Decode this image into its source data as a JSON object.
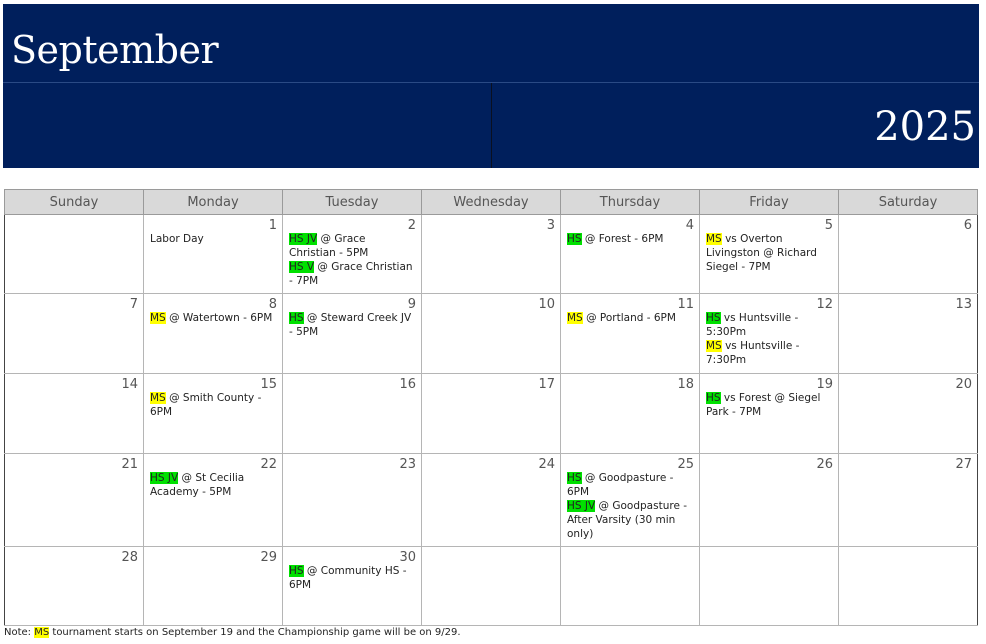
{
  "header": {
    "month": "September",
    "year": "2025"
  },
  "weekdays": [
    "Sunday",
    "Monday",
    "Tuesday",
    "Wednesday",
    "Thursday",
    "Friday",
    "Saturday"
  ],
  "colors": {
    "header_bg": "#001f5c",
    "hs_tag": "#00e000",
    "ms_tag": "#ffff00"
  },
  "weeks": [
    [
      {
        "day": "",
        "events": []
      },
      {
        "day": "1",
        "events": [
          {
            "tag": "",
            "text": "Labor Day"
          }
        ]
      },
      {
        "day": "2",
        "events": [
          {
            "tag": "HS JV",
            "type": "hs",
            "text": " @ Grace Christian - 5PM"
          },
          {
            "tag": "HS V",
            "type": "hs",
            "text": " @ Grace Christian - 7PM"
          }
        ]
      },
      {
        "day": "3",
        "events": []
      },
      {
        "day": "4",
        "events": [
          {
            "tag": "HS",
            "type": "hs",
            "text": " @ Forest - 6PM"
          }
        ]
      },
      {
        "day": "5",
        "events": [
          {
            "tag": "MS",
            "type": "ms",
            "text": " vs  Overton Livingston @ Richard Siegel - 7PM"
          }
        ]
      },
      {
        "day": "6",
        "events": []
      }
    ],
    [
      {
        "day": "7",
        "events": []
      },
      {
        "day": "8",
        "events": [
          {
            "tag": "MS",
            "type": "ms",
            "text": " @ Watertown - 6PM"
          }
        ]
      },
      {
        "day": "9",
        "events": [
          {
            "tag": "HS",
            "type": "hs",
            "text": " @ Steward Creek JV - 5PM"
          }
        ]
      },
      {
        "day": "10",
        "events": []
      },
      {
        "day": "11",
        "events": [
          {
            "tag": "MS",
            "type": "ms",
            "text": " @ Portland - 6PM"
          }
        ]
      },
      {
        "day": "12",
        "events": [
          {
            "tag": "HS",
            "type": "hs",
            "text": " vs Huntsville - 5:30Pm"
          },
          {
            "tag": "MS",
            "type": "ms",
            "text": " vs Huntsville - 7:30Pm"
          }
        ]
      },
      {
        "day": "13",
        "events": []
      }
    ],
    [
      {
        "day": "14",
        "events": []
      },
      {
        "day": "15",
        "events": [
          {
            "tag": "MS",
            "type": "ms",
            "text": " @ Smith County - 6PM"
          }
        ]
      },
      {
        "day": "16",
        "events": []
      },
      {
        "day": "17",
        "events": []
      },
      {
        "day": "18",
        "events": []
      },
      {
        "day": "19",
        "events": [
          {
            "tag": "HS",
            "type": "hs",
            "text": " vs Forest @ Siegel Park - 7PM"
          }
        ]
      },
      {
        "day": "20",
        "events": []
      }
    ],
    [
      {
        "day": "21",
        "events": []
      },
      {
        "day": "22",
        "events": [
          {
            "tag": "HS JV",
            "type": "hs",
            "text": " @ St Cecilia Academy - 5PM"
          }
        ]
      },
      {
        "day": "23",
        "events": []
      },
      {
        "day": "24",
        "events": []
      },
      {
        "day": "25",
        "events": [
          {
            "tag": "HS",
            "type": "hs",
            "text": " @ Goodpasture - 6PM"
          },
          {
            "tag": "HS JV",
            "type": "hs",
            "text": " @ Goodpasture - After Varsity (30 min only)"
          }
        ]
      },
      {
        "day": "26",
        "events": []
      },
      {
        "day": "27",
        "events": []
      }
    ],
    [
      {
        "day": "28",
        "events": []
      },
      {
        "day": "29",
        "events": []
      },
      {
        "day": "30",
        "events": [
          {
            "tag": "HS",
            "type": "hs",
            "text": " @ Community HS - 6PM"
          }
        ]
      },
      {
        "day": "",
        "events": []
      },
      {
        "day": "",
        "events": []
      },
      {
        "day": "",
        "events": []
      },
      {
        "day": "",
        "events": []
      }
    ]
  ],
  "note": {
    "prefix": "Note: ",
    "tag": "MS",
    "text": " tournament starts on September 19 and the Championship game will be on 9/29."
  }
}
